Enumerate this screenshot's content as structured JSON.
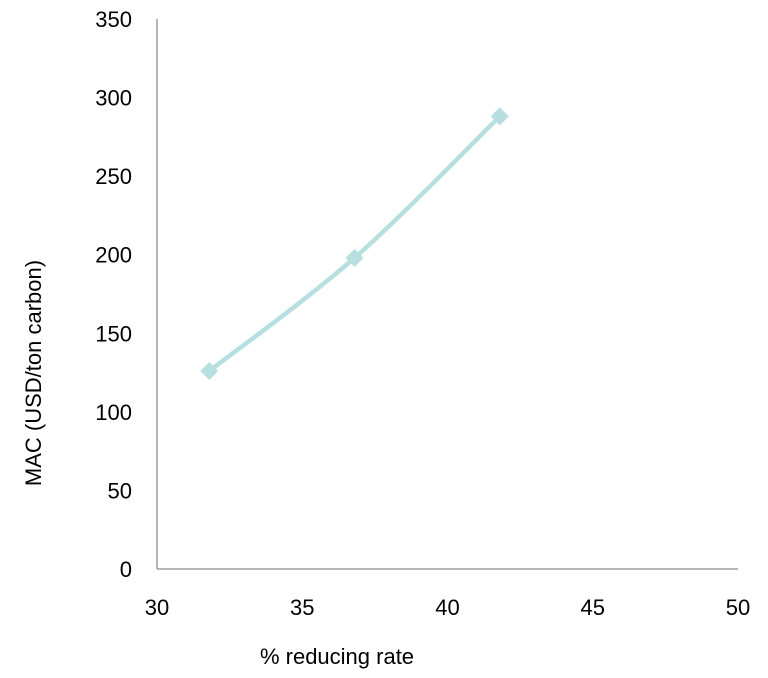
{
  "chart_data": {
    "type": "line",
    "title": "",
    "xlabel": "% reducing rate",
    "ylabel": "MAC (USD/ton carbon)",
    "xlim": [
      30,
      50
    ],
    "ylim": [
      0,
      350
    ],
    "x_ticks": [
      30,
      35,
      40,
      45,
      50
    ],
    "y_ticks": [
      0,
      50,
      100,
      150,
      200,
      250,
      300,
      350
    ],
    "smoothed": true,
    "marker": "diamond",
    "grid": false,
    "legend": "none",
    "series": [
      {
        "color": "#b7dfe0",
        "x": [
          31.8,
          36.8,
          41.8
        ],
        "y": [
          126,
          198,
          288
        ]
      }
    ]
  }
}
